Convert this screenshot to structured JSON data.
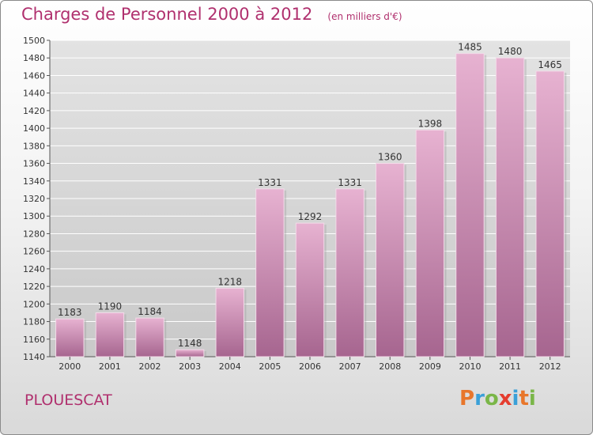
{
  "header": {
    "title": "Charges de Personnel 2000 à 2012",
    "subtitle": "(en milliers d'€)"
  },
  "footer": {
    "commune": "PLOUESCAT",
    "logo_text": "Proxiti",
    "logo_colors": [
      "#e8762b",
      "#3aa0d8",
      "#7ab648",
      "#e53d2f",
      "#3aa0d8",
      "#e8762b",
      "#7ab648"
    ]
  },
  "colors": {
    "bar_light": "#e7b2d1",
    "bar_dark": "#a6658f",
    "accent": "#b0306e",
    "grid": "#ffffff"
  },
  "chart_data": {
    "type": "bar",
    "title": "Charges de Personnel 2000 à 2012",
    "subtitle": "(en milliers d'€)",
    "categories": [
      "2000",
      "2001",
      "2002",
      "2003",
      "2004",
      "2005",
      "2006",
      "2007",
      "2008",
      "2009",
      "2010",
      "2011",
      "2012"
    ],
    "values": [
      1183,
      1190,
      1184,
      1148,
      1218,
      1331,
      1292,
      1331,
      1360,
      1398,
      1485,
      1480,
      1465
    ],
    "ylim": [
      1140,
      1500
    ],
    "ytick_step": 20,
    "grid": true,
    "legend": "none"
  }
}
